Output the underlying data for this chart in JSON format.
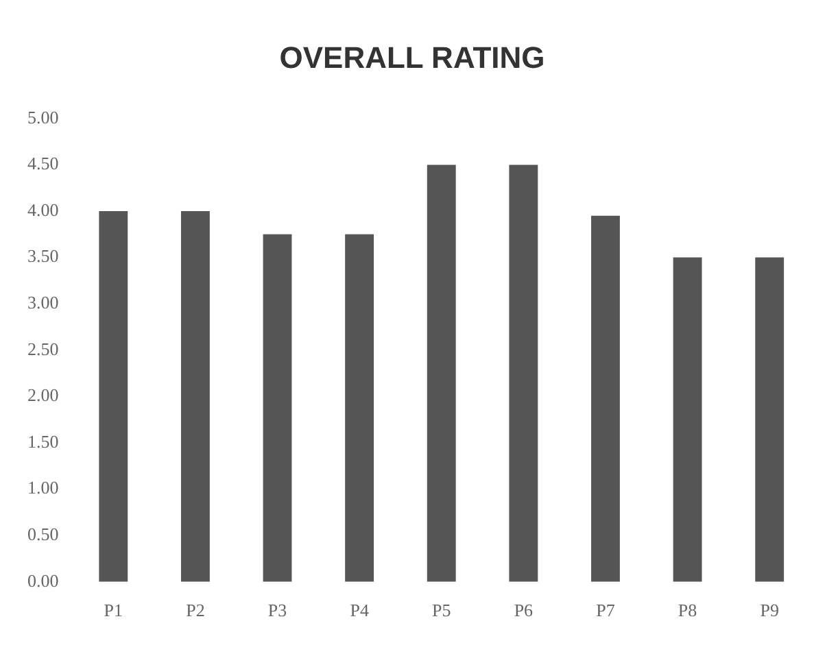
{
  "chart_data": {
    "type": "bar",
    "title": "OVERALL RATING",
    "categories": [
      "P1",
      "P2",
      "P3",
      "P4",
      "P5",
      "P6",
      "P7",
      "P8",
      "P9"
    ],
    "values": [
      4.0,
      4.0,
      3.75,
      3.75,
      4.5,
      4.5,
      3.95,
      3.5,
      3.5
    ],
    "color": "#555555",
    "ylim": [
      0,
      5
    ],
    "yticks": [
      {
        "value": 0,
        "label": "0.00"
      },
      {
        "value": 0.5,
        "label": "0.50"
      },
      {
        "value": 1,
        "label": "1.00"
      },
      {
        "value": 1.5,
        "label": "1.50"
      },
      {
        "value": 2,
        "label": "2.00"
      },
      {
        "value": 2.5,
        "label": "2.50"
      },
      {
        "value": 3,
        "label": "3.00"
      },
      {
        "value": 3.5,
        "label": "3.50"
      },
      {
        "value": 4,
        "label": "4.00"
      },
      {
        "value": 4.5,
        "label": "4.50"
      },
      {
        "value": 5,
        "label": "5.00"
      }
    ],
    "grid": false,
    "legend": false
  }
}
